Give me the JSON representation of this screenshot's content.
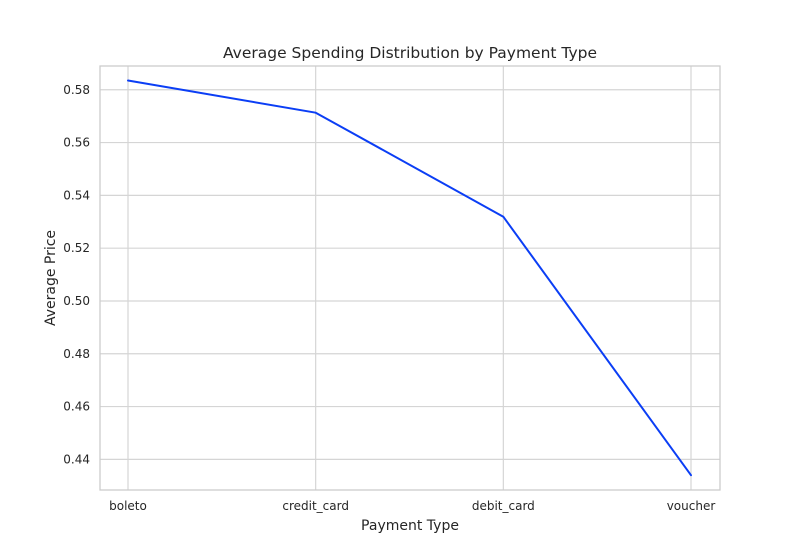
{
  "chart_data": {
    "type": "line",
    "title": "Average Spending Distribution by Payment Type",
    "xlabel": "Payment Type",
    "ylabel": "Average Price",
    "categories": [
      "boleto",
      "credit_card",
      "debit_card",
      "voucher"
    ],
    "series": [
      {
        "values": [
          0.5835,
          0.5713,
          0.5319,
          0.434
        ]
      }
    ],
    "ylim": [
      0.4284,
      0.589
    ],
    "yticks": [
      0.44,
      0.46,
      0.48,
      0.5,
      0.52,
      0.54,
      0.56,
      0.58
    ],
    "ytick_labels": [
      "0.44",
      "0.46",
      "0.48",
      "0.50",
      "0.52",
      "0.54",
      "0.56",
      "0.58"
    ],
    "grid": true,
    "legend": "none",
    "colors": {
      "line": "#0b3ef5",
      "grid": "#d5d5d5",
      "frame": "#cccccc",
      "text": "#262626"
    }
  }
}
